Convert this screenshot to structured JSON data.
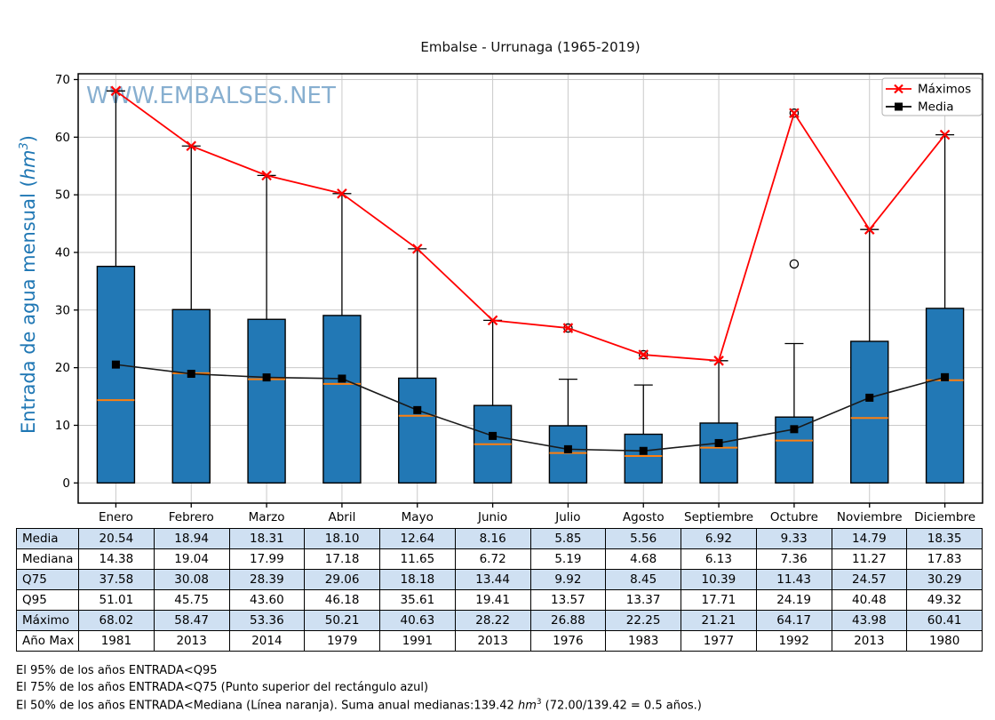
{
  "title": "Embalse - Urrunaga (1965-2019)",
  "watermark": "WWW.EMBALSES.NET",
  "y_axis": {
    "label_prefix": "Entrada de agua mensual (",
    "label_unit": "hm",
    "label_sup": "3",
    "label_suffix": ")",
    "ticks": [
      0,
      10,
      20,
      30,
      40,
      50,
      60,
      70
    ]
  },
  "legend": {
    "maximos": "Máximos",
    "media": "Media"
  },
  "chart_data": {
    "type": "boxplot",
    "title": "Embalse - Urrunaga (1965-2019)",
    "ylabel": "Entrada de agua mensual (hm3)",
    "categories": [
      "Enero",
      "Febrero",
      "Marzo",
      "Abril",
      "Mayo",
      "Junio",
      "Julio",
      "Agosto",
      "Septiembre",
      "Octubre",
      "Noviembre",
      "Diciembre"
    ],
    "ylim": [
      -3.5,
      71
    ],
    "grid": true,
    "legend_position": "top-right",
    "box_bottom": 0,
    "series": [
      {
        "name": "Media",
        "values": [
          20.54,
          18.94,
          18.31,
          18.1,
          12.64,
          8.16,
          5.85,
          5.56,
          6.92,
          9.33,
          14.79,
          18.35
        ]
      },
      {
        "name": "Mediana",
        "values": [
          14.38,
          19.04,
          17.99,
          17.18,
          11.65,
          6.72,
          5.19,
          4.68,
          6.13,
          7.36,
          11.27,
          17.83
        ]
      },
      {
        "name": "Q75",
        "values": [
          37.58,
          30.08,
          28.39,
          29.06,
          18.18,
          13.44,
          9.92,
          8.45,
          10.39,
          11.43,
          24.57,
          30.29
        ]
      },
      {
        "name": "Q95",
        "values": [
          51.01,
          45.75,
          43.6,
          46.18,
          35.61,
          19.41,
          13.57,
          13.37,
          17.71,
          24.19,
          40.48,
          49.32
        ]
      },
      {
        "name": "Máximo",
        "values": [
          68.02,
          58.47,
          53.36,
          50.21,
          40.63,
          28.22,
          26.88,
          22.25,
          21.21,
          64.17,
          43.98,
          60.41
        ]
      },
      {
        "name": "Año Max",
        "values": [
          1981,
          2013,
          2014,
          1979,
          1991,
          2013,
          1976,
          1983,
          1977,
          1992,
          2013,
          1980
        ]
      }
    ],
    "whisker_tops": [
      68.02,
      58.47,
      53.36,
      50.21,
      40.63,
      28.22,
      18.0,
      17.0,
      21.21,
      24.19,
      43.98,
      60.41
    ],
    "fliers": [
      {
        "month_index": 6,
        "values": [
          26.88
        ]
      },
      {
        "month_index": 7,
        "values": [
          22.25
        ]
      },
      {
        "month_index": 9,
        "values": [
          38.0,
          64.17
        ]
      }
    ],
    "colors": {
      "box_fill": "#2278b5",
      "box_edge": "#000000",
      "median": "#ff7f0e",
      "maximos_line": "#ff0000",
      "media_line": "#1a1a1a",
      "grid": "#c9c9c9",
      "watermark": "#7ba7cb",
      "ylabel": "#1f77b4",
      "table_row_blue": "#cfe0f2"
    }
  },
  "table": {
    "row_labels": [
      "Media",
      "Mediana",
      "Q75",
      "Q95",
      "Máximo",
      "Año Max"
    ],
    "decimal_rows": 5
  },
  "footnotes": {
    "line1": "El 95% de los años ENTRADA<Q95",
    "line2": "El 75% de los años ENTRADA<Q75 (Punto superior del rectángulo azul)",
    "line3_prefix": "El 50% de los años ENTRADA<Mediana (Línea naranja). Suma anual medianas:139.42 ",
    "line3_unit": "hm",
    "line3_sup": "3",
    "line3_suffix": " (72.00/139.42 = 0.5 años.)"
  }
}
